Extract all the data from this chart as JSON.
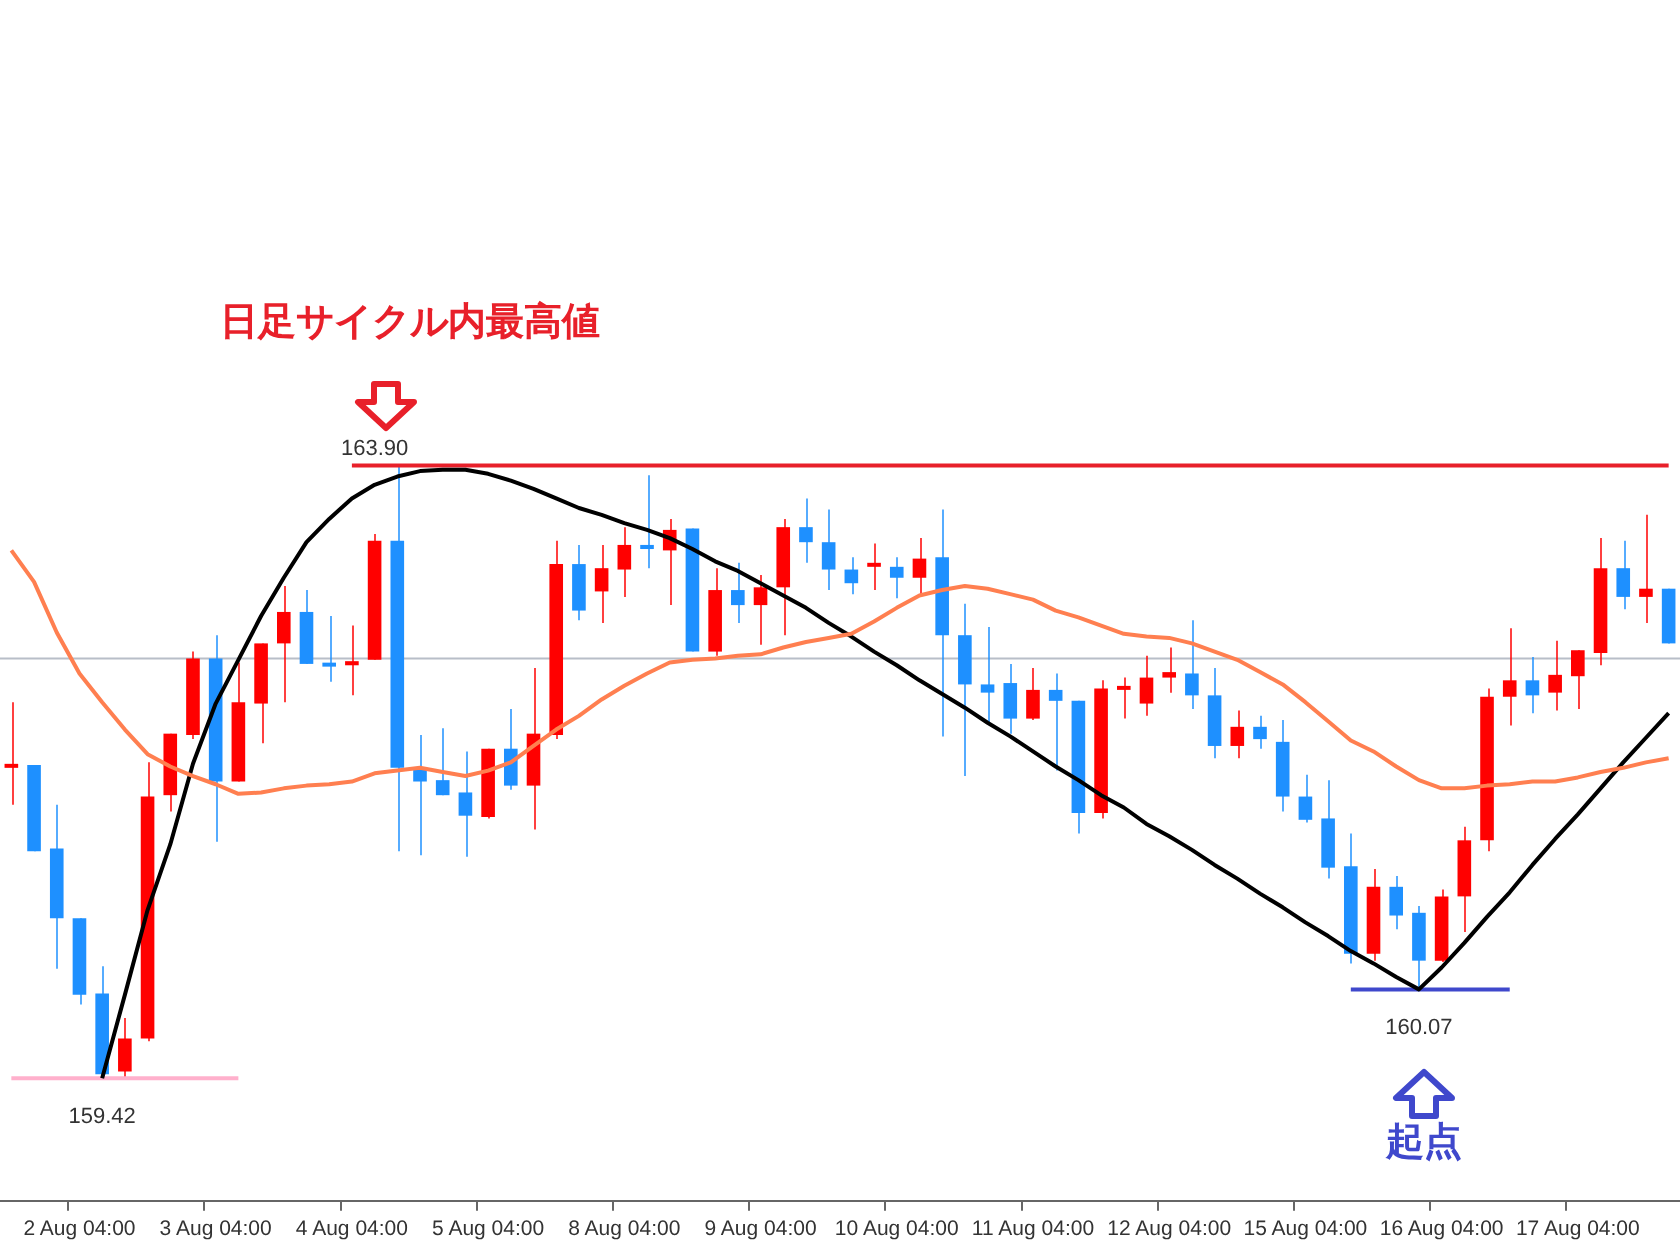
{
  "chart_data": {
    "type": "candlestick",
    "categories": [
      null,
      null,
      null,
      "2 Aug 04:00",
      null,
      null,
      null,
      null,
      null,
      "3 Aug 04:00",
      null,
      null,
      null,
      null,
      null,
      "4 Aug 04:00",
      null,
      null,
      null,
      null,
      null,
      "5 Aug 04:00",
      null,
      null,
      null,
      null,
      null,
      "8 Aug 04:00",
      null,
      null,
      null,
      null,
      null,
      "9 Aug 04:00",
      null,
      null,
      null,
      null,
      null,
      "10 Aug 04:00",
      null,
      null,
      null,
      null,
      null,
      "11 Aug 04:00",
      null,
      null,
      null,
      null,
      null,
      "12 Aug 04:00",
      null,
      null,
      null,
      null,
      null,
      "15 Aug 04:00",
      null,
      null,
      null,
      null,
      null,
      "16 Aug 04:00",
      null,
      null,
      null,
      null,
      null,
      "17 Aug 04:00",
      null,
      null,
      null,
      null
    ],
    "ohlc": [
      [
        161.69,
        162.17,
        161.42,
        161.7
      ],
      [
        161.71,
        161.71,
        161.08,
        161.08
      ],
      [
        161.1,
        161.42,
        160.22,
        160.59
      ],
      [
        160.59,
        160.59,
        159.96,
        160.03
      ],
      [
        160.04,
        160.24,
        159.44,
        159.45
      ],
      [
        159.47,
        159.86,
        159.42,
        159.71
      ],
      [
        159.71,
        161.73,
        159.69,
        161.48
      ],
      [
        161.49,
        161.94,
        161.37,
        161.94
      ],
      [
        161.93,
        162.54,
        161.9,
        162.49
      ],
      [
        162.49,
        162.66,
        161.15,
        161.59
      ],
      [
        161.59,
        162.46,
        161.59,
        162.17
      ],
      [
        162.16,
        162.6,
        161.87,
        162.6
      ],
      [
        162.6,
        163.02,
        162.17,
        162.83
      ],
      [
        162.83,
        162.99,
        162.45,
        162.45
      ],
      [
        162.45,
        162.8,
        162.32,
        162.43
      ],
      [
        162.44,
        162.73,
        162.22,
        162.47
      ],
      [
        162.48,
        163.4,
        162.48,
        163.35
      ],
      [
        163.35,
        163.9,
        161.08,
        161.69
      ],
      [
        161.69,
        161.93,
        161.05,
        161.59
      ],
      [
        161.6,
        161.98,
        161.49,
        161.49
      ],
      [
        161.51,
        161.81,
        161.04,
        161.34
      ],
      [
        161.33,
        161.83,
        161.32,
        161.83
      ],
      [
        161.83,
        162.12,
        161.53,
        161.56
      ],
      [
        161.56,
        162.42,
        161.24,
        161.94
      ],
      [
        161.93,
        163.35,
        161.9,
        163.18
      ],
      [
        163.18,
        163.32,
        162.77,
        162.84
      ],
      [
        162.98,
        163.32,
        162.75,
        163.15
      ],
      [
        163.14,
        163.45,
        162.94,
        163.32
      ],
      [
        163.32,
        163.83,
        163.15,
        163.29
      ],
      [
        163.28,
        163.51,
        162.88,
        163.43
      ],
      [
        163.44,
        163.44,
        162.54,
        162.54
      ],
      [
        162.54,
        163.15,
        162.51,
        162.99
      ],
      [
        162.99,
        163.19,
        162.75,
        162.88
      ],
      [
        162.88,
        163.1,
        162.59,
        163.01
      ],
      [
        163.01,
        163.51,
        162.66,
        163.45
      ],
      [
        163.45,
        163.66,
        163.19,
        163.34
      ],
      [
        163.34,
        163.58,
        162.99,
        163.14
      ],
      [
        163.14,
        163.23,
        162.96,
        163.04
      ],
      [
        163.16,
        163.33,
        162.99,
        163.17
      ],
      [
        163.16,
        163.23,
        162.93,
        163.08
      ],
      [
        163.08,
        163.37,
        162.95,
        163.22
      ],
      [
        163.23,
        163.58,
        161.92,
        162.66
      ],
      [
        162.66,
        162.89,
        161.63,
        162.3
      ],
      [
        162.3,
        162.72,
        162.02,
        162.24
      ],
      [
        162.31,
        162.45,
        161.94,
        162.05
      ],
      [
        162.05,
        162.42,
        162.04,
        162.26
      ],
      [
        162.26,
        162.38,
        161.67,
        162.18
      ],
      [
        162.18,
        162.18,
        161.21,
        161.36
      ],
      [
        161.36,
        162.33,
        161.32,
        162.27
      ],
      [
        162.26,
        162.35,
        162.05,
        162.27
      ],
      [
        162.16,
        162.51,
        162.07,
        162.35
      ],
      [
        162.35,
        162.57,
        162.24,
        162.39
      ],
      [
        162.38,
        162.77,
        162.12,
        162.22
      ],
      [
        162.22,
        162.42,
        161.76,
        161.85
      ],
      [
        161.85,
        162.11,
        161.76,
        161.99
      ],
      [
        161.99,
        162.07,
        161.83,
        161.9
      ],
      [
        161.88,
        162.04,
        161.37,
        161.48
      ],
      [
        161.48,
        161.64,
        161.29,
        161.31
      ],
      [
        161.32,
        161.6,
        160.88,
        160.96
      ],
      [
        160.97,
        161.21,
        160.26,
        160.33
      ],
      [
        160.33,
        160.95,
        160.28,
        160.82
      ],
      [
        160.82,
        160.9,
        160.51,
        160.61
      ],
      [
        160.63,
        160.68,
        160.07,
        160.28
      ],
      [
        160.28,
        160.8,
        160.27,
        160.75
      ],
      [
        160.75,
        161.26,
        160.49,
        161.16
      ],
      [
        161.16,
        162.27,
        161.08,
        162.21
      ],
      [
        162.21,
        162.71,
        162.0,
        162.33
      ],
      [
        162.33,
        162.5,
        162.09,
        162.22
      ],
      [
        162.24,
        162.62,
        162.11,
        162.37
      ],
      [
        162.36,
        162.55,
        162.12,
        162.55
      ],
      [
        162.53,
        163.37,
        162.44,
        163.15
      ],
      [
        163.15,
        163.35,
        162.85,
        162.94
      ],
      [
        162.94,
        163.54,
        162.75,
        163.0
      ],
      [
        163.0,
        163.0,
        162.6,
        162.6
      ]
    ],
    "colors": [
      "#ff0000",
      "#1e90ff",
      "#1e90ff",
      "#1e90ff",
      "#1e90ff",
      "#ff0000",
      "#ff0000",
      "#ff0000",
      "#ff0000",
      "#1e90ff",
      "#ff0000",
      "#ff0000",
      "#ff0000",
      "#1e90ff",
      "#1e90ff",
      "#ff0000",
      "#ff0000",
      "#1e90ff",
      "#1e90ff",
      "#1e90ff",
      "#1e90ff",
      "#ff0000",
      "#1e90ff",
      "#ff0000",
      "#ff0000",
      "#1e90ff",
      "#ff0000",
      "#ff0000",
      "#1e90ff",
      "#ff0000",
      "#1e90ff",
      "#ff0000",
      "#1e90ff",
      "#ff0000",
      "#ff0000",
      "#1e90ff",
      "#1e90ff",
      "#1e90ff",
      "#ff0000",
      "#1e90ff",
      "#ff0000",
      "#1e90ff",
      "#1e90ff",
      "#1e90ff",
      "#1e90ff",
      "#ff0000",
      "#1e90ff",
      "#1e90ff",
      "#ff0000",
      "#ff0000",
      "#ff0000",
      "#ff0000",
      "#1e90ff",
      "#1e90ff",
      "#ff0000",
      "#1e90ff",
      "#1e90ff",
      "#1e90ff",
      "#1e90ff",
      "#1e90ff",
      "#ff0000",
      "#1e90ff",
      "#1e90ff",
      "#ff0000",
      "#ff0000",
      "#ff0000",
      "#ff0000",
      "#1e90ff",
      "#ff0000",
      "#ff0000",
      "#ff0000",
      "#1e90ff",
      "#ff0000",
      "#1e90ff"
    ],
    "series": [
      {
        "type": "line",
        "color": "#ff7f50",
        "values": [
          163.28,
          163.05,
          162.68,
          162.38,
          162.17,
          161.97,
          161.79,
          161.7,
          161.63,
          161.57,
          161.5,
          161.51,
          161.54,
          161.56,
          161.57,
          161.59,
          161.65,
          161.67,
          161.69,
          161.66,
          161.63,
          161.67,
          161.73,
          161.85,
          161.97,
          162.07,
          162.19,
          162.29,
          162.38,
          162.46,
          162.48,
          162.49,
          162.51,
          162.52,
          162.57,
          162.61,
          162.64,
          162.67,
          162.76,
          162.86,
          162.95,
          162.99,
          163.02,
          163.0,
          162.96,
          162.92,
          162.84,
          162.79,
          162.73,
          162.67,
          162.65,
          162.64,
          162.6,
          162.54,
          162.48,
          162.39,
          162.3,
          162.17,
          162.03,
          161.89,
          161.81,
          161.7,
          161.6,
          161.54,
          161.54,
          161.56,
          161.57,
          161.59,
          161.59,
          161.62,
          161.66,
          161.69,
          161.73,
          161.76
        ]
      },
      {
        "type": "line",
        "color": "#000000",
        "values": [
          null,
          null,
          null,
          null,
          159.42,
          160.03,
          160.65,
          161.13,
          161.72,
          162.16,
          162.48,
          162.8,
          163.08,
          163.34,
          163.51,
          163.66,
          163.76,
          163.82,
          163.86,
          163.87,
          163.87,
          163.84,
          163.79,
          163.73,
          163.66,
          163.59,
          163.54,
          163.48,
          163.43,
          163.37,
          163.29,
          163.2,
          163.13,
          163.04,
          162.95,
          162.86,
          162.75,
          162.65,
          162.54,
          162.44,
          162.33,
          162.23,
          162.13,
          162.02,
          161.92,
          161.81,
          161.7,
          161.6,
          161.49,
          161.4,
          161.28,
          161.19,
          161.09,
          160.98,
          160.88,
          160.77,
          160.67,
          160.56,
          160.46,
          160.35,
          160.26,
          160.16,
          160.07,
          160.23,
          160.41,
          160.6,
          160.78,
          160.98,
          161.17,
          161.35,
          161.54,
          161.73,
          161.91,
          162.09
        ]
      },
      {
        "type": "line",
        "color": "#e8202a",
        "values": [
          null,
          null,
          null,
          null,
          null,
          null,
          null,
          null,
          null,
          null,
          null,
          null,
          null,
          null,
          null,
          163.9,
          163.9,
          163.9,
          163.9,
          163.9,
          163.9,
          163.9,
          163.9,
          163.9,
          163.9,
          163.9,
          163.9,
          163.9,
          163.9,
          163.9,
          163.9,
          163.9,
          163.9,
          163.9,
          163.9,
          163.9,
          163.9,
          163.9,
          163.9,
          163.9,
          163.9,
          163.9,
          163.9,
          163.9,
          163.9,
          163.9,
          163.9,
          163.9,
          163.9,
          163.9,
          163.9,
          163.9,
          163.9,
          163.9,
          163.9,
          163.9,
          163.9,
          163.9,
          163.9,
          163.9,
          163.9,
          163.9,
          163.9,
          163.9,
          163.9,
          163.9,
          163.9,
          163.9,
          163.9,
          163.9,
          163.9,
          163.9,
          163.9,
          163.9
        ],
        "value_labels": [
          null,
          null,
          null,
          null,
          null,
          null,
          null,
          null,
          null,
          null,
          null,
          null,
          null,
          null,
          null,
          null,
          "163.90",
          null,
          null,
          null,
          null,
          null,
          null,
          null,
          null,
          null,
          null,
          null,
          null,
          null,
          null,
          null,
          null,
          null,
          null,
          null,
          null,
          null,
          null,
          null,
          null,
          null,
          null,
          null,
          null,
          null,
          null,
          null,
          null,
          null,
          null,
          null,
          null,
          null,
          null,
          null,
          null,
          null,
          null,
          null,
          null,
          null,
          null,
          null,
          null,
          null,
          null,
          null,
          null,
          null,
          null,
          null,
          null,
          null
        ]
      },
      {
        "type": "line",
        "color": "#ffb0cc",
        "values": [
          159.42,
          159.42,
          159.42,
          159.42,
          159.42,
          159.42,
          159.42,
          159.42,
          159.42,
          159.42,
          159.42,
          null,
          null,
          null,
          null,
          null,
          null,
          null,
          null,
          null,
          null,
          null,
          null,
          null,
          null,
          null,
          null,
          null,
          null,
          null,
          null,
          null,
          null,
          null,
          null,
          null,
          null,
          null,
          null,
          null,
          null,
          null,
          null,
          null,
          null,
          null,
          null,
          null,
          null,
          null,
          null,
          null,
          null,
          null,
          null,
          null,
          null,
          null,
          null,
          null,
          null,
          null,
          null,
          null,
          null,
          null,
          null,
          null,
          null,
          null,
          null,
          null,
          null,
          null
        ],
        "value_labels": [
          null,
          null,
          null,
          null,
          "159.42",
          null,
          null,
          null,
          null,
          null,
          null,
          null,
          null,
          null,
          null,
          null,
          null,
          null,
          null,
          null,
          null,
          null,
          null,
          null,
          null,
          null,
          null,
          null,
          null,
          null,
          null,
          null,
          null,
          null,
          null,
          null,
          null,
          null,
          null,
          null,
          null,
          null,
          null,
          null,
          null,
          null,
          null,
          null,
          null,
          null,
          null,
          null,
          null,
          null,
          null,
          null,
          null,
          null,
          null,
          null,
          null,
          null,
          null,
          null,
          null,
          null,
          null,
          null,
          null,
          null,
          null,
          null,
          null,
          null
        ]
      },
      {
        "type": "line",
        "color": "#3f48cc",
        "values": [
          null,
          null,
          null,
          null,
          null,
          null,
          null,
          null,
          null,
          null,
          null,
          null,
          null,
          null,
          null,
          null,
          null,
          null,
          null,
          null,
          null,
          null,
          null,
          null,
          null,
          null,
          null,
          null,
          null,
          null,
          null,
          null,
          null,
          null,
          null,
          null,
          null,
          null,
          null,
          null,
          null,
          null,
          null,
          null,
          null,
          null,
          null,
          null,
          null,
          null,
          null,
          null,
          null,
          null,
          null,
          null,
          null,
          null,
          null,
          160.07,
          160.07,
          160.07,
          160.07,
          160.07,
          160.07,
          160.07,
          160.07,
          null,
          null,
          null,
          null,
          null,
          null,
          null
        ],
        "value_labels": [
          null,
          null,
          null,
          null,
          null,
          null,
          null,
          null,
          null,
          null,
          null,
          null,
          null,
          null,
          null,
          null,
          null,
          null,
          null,
          null,
          null,
          null,
          null,
          null,
          null,
          null,
          null,
          null,
          null,
          null,
          null,
          null,
          null,
          null,
          null,
          null,
          null,
          null,
          null,
          null,
          null,
          null,
          null,
          null,
          null,
          null,
          null,
          null,
          null,
          null,
          null,
          null,
          null,
          null,
          null,
          null,
          null,
          null,
          null,
          null,
          null,
          null,
          "160.07",
          null,
          null,
          null,
          null,
          null,
          null,
          null,
          null,
          null,
          null,
          null
        ]
      }
    ],
    "ref_lines": [
      {
        "axis": "y",
        "value": 162.49,
        "color": "#b8bec8"
      }
    ],
    "annotations": [
      "日足サイクル内最高値",
      "起点"
    ],
    "marker": "none",
    "tick_labels": "x"
  }
}
